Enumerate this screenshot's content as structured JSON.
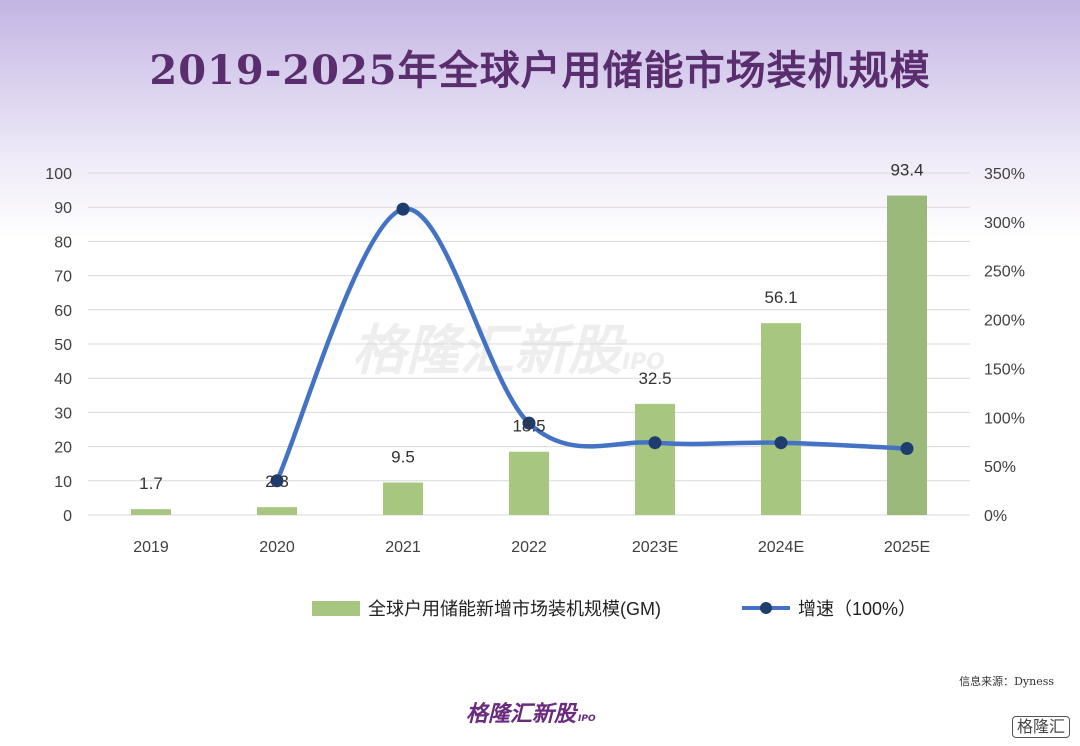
{
  "title": "2019-2025年全球户用储能市场装机规模",
  "watermark": {
    "main": "格隆汇新股",
    "sub": "IPO"
  },
  "source": "信息来源：Dyness",
  "brand": {
    "main": "格隆汇新股",
    "sub": "IPO"
  },
  "corner_logo": "格隆汇",
  "colors": {
    "bar": "#a7c680",
    "bar_last": "#9bb97a",
    "line": "#4472c4",
    "marker": "#1f3c6e",
    "grid": "#d9d9d9",
    "title": "#5a2d6e"
  },
  "chart_data": {
    "type": "bar",
    "categories": [
      "2019",
      "2020",
      "2021",
      "2022",
      "2023E",
      "2024E",
      "2025E"
    ],
    "series": [
      {
        "name": "全球户用储能新增市场装机规模(GM)",
        "type": "bar",
        "axis": "left",
        "values": [
          1.7,
          2.3,
          9.5,
          18.5,
          32.5,
          56.1,
          93.4
        ]
      },
      {
        "name": "增速（100%）",
        "type": "line",
        "axis": "right",
        "values": [
          null,
          35,
          313,
          94,
          74,
          74,
          68
        ]
      }
    ],
    "data_labels": [
      "1.7",
      "2.3",
      "9.5",
      "18.5",
      "32.5",
      "56.1",
      "93.4"
    ],
    "y_left": {
      "min": 0,
      "max": 100,
      "step": 10,
      "ticks": [
        "0",
        "10",
        "20",
        "30",
        "40",
        "50",
        "60",
        "70",
        "80",
        "90",
        "100"
      ]
    },
    "y_right": {
      "min": 0,
      "max": 350,
      "step": 50,
      "ticks": [
        "0%",
        "50%",
        "100%",
        "150%",
        "200%",
        "250%",
        "300%",
        "350%"
      ]
    },
    "grid": true,
    "legend_position": "bottom"
  }
}
